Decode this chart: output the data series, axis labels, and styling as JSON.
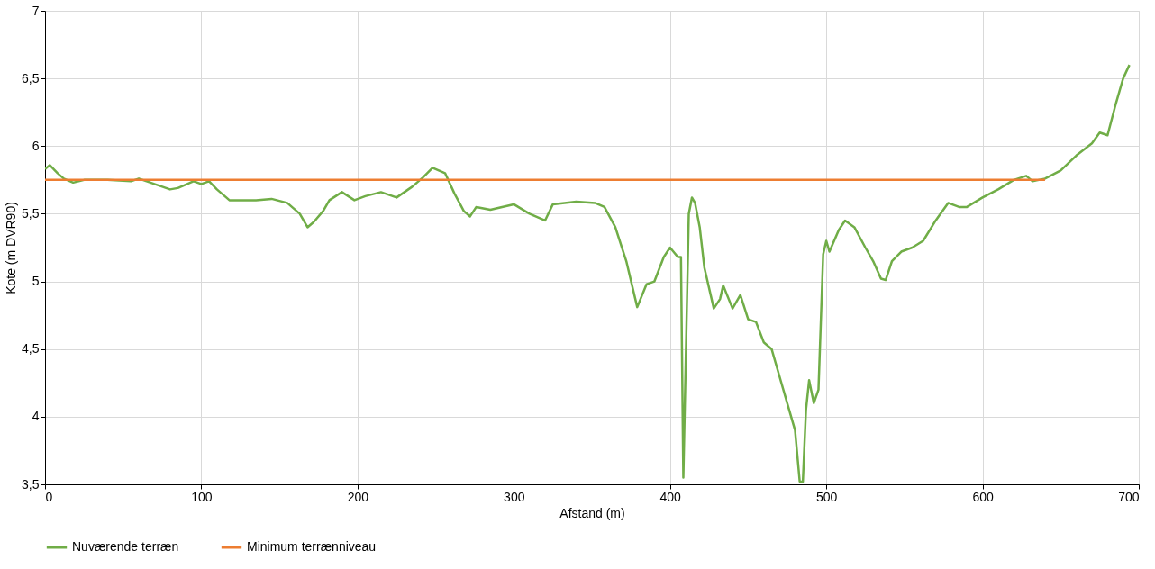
{
  "chart_data": {
    "type": "line",
    "xlabel": "Afstand (m)",
    "ylabel": "Kote (m DVR90)",
    "xlim": [
      0,
      700
    ],
    "xticks": [
      0,
      100,
      200,
      300,
      400,
      500,
      600,
      700
    ],
    "ylim": [
      3.5,
      7
    ],
    "yticks": [
      {
        "value": 3.5,
        "label": "3,5"
      },
      4,
      {
        "value": 4.5,
        "label": "4,5"
      },
      5,
      {
        "value": 5.5,
        "label": "5,5"
      },
      6,
      {
        "value": 6.5,
        "label": "6,5"
      },
      7
    ],
    "grid": true,
    "legend": "bottom",
    "line_style": "solid",
    "marker": "none",
    "series": [
      {
        "name": "Nuværende terræn",
        "color": "#70ad47",
        "x": [
          0,
          3,
          8,
          12,
          18,
          25,
          40,
          55,
          60,
          70,
          80,
          85,
          95,
          100,
          105,
          110,
          118,
          125,
          135,
          145,
          155,
          163,
          168,
          172,
          178,
          182,
          190,
          198,
          205,
          215,
          225,
          235,
          242,
          248,
          252,
          256,
          262,
          268,
          272,
          276,
          285,
          300,
          310,
          320,
          325,
          340,
          352,
          358,
          365,
          372,
          379,
          385,
          390,
          396,
          400,
          405,
          407,
          408.5,
          412,
          414,
          416,
          419,
          422,
          428,
          432,
          434,
          440,
          445,
          450,
          455,
          460,
          465,
          470,
          475,
          480,
          483,
          485,
          487,
          489,
          492,
          495,
          498,
          500,
          502,
          508,
          512,
          518,
          525,
          530,
          535,
          538,
          542,
          548,
          555,
          562,
          570,
          578,
          585,
          590,
          600,
          610,
          620,
          628,
          632,
          640,
          650,
          660,
          670,
          675,
          680,
          685,
          690,
          694
        ],
        "values": [
          5.83,
          5.86,
          5.8,
          5.76,
          5.73,
          5.75,
          5.75,
          5.74,
          5.76,
          5.72,
          5.68,
          5.69,
          5.74,
          5.72,
          5.74,
          5.68,
          5.6,
          5.6,
          5.6,
          5.61,
          5.58,
          5.5,
          5.4,
          5.44,
          5.52,
          5.6,
          5.66,
          5.6,
          5.63,
          5.66,
          5.62,
          5.7,
          5.77,
          5.84,
          5.82,
          5.8,
          5.65,
          5.52,
          5.48,
          5.55,
          5.53,
          5.57,
          5.5,
          5.45,
          5.57,
          5.59,
          5.58,
          5.55,
          5.4,
          5.15,
          4.81,
          4.98,
          5.0,
          5.18,
          5.25,
          5.18,
          5.18,
          3.55,
          5.5,
          5.62,
          5.58,
          5.4,
          5.1,
          4.8,
          4.87,
          4.97,
          4.8,
          4.9,
          4.72,
          4.7,
          4.55,
          4.5,
          4.3,
          4.1,
          3.9,
          3.52,
          3.52,
          4.05,
          4.27,
          4.1,
          4.2,
          5.2,
          5.3,
          5.22,
          5.38,
          5.45,
          5.4,
          5.25,
          5.15,
          5.02,
          5.01,
          5.15,
          5.22,
          5.25,
          5.3,
          5.45,
          5.58,
          5.55,
          5.55,
          5.62,
          5.68,
          5.75,
          5.78,
          5.74,
          5.76,
          5.82,
          5.93,
          6.02,
          6.1,
          6.08,
          6.3,
          6.5,
          6.6
        ]
      },
      {
        "name": "Minimum terrænniveau",
        "color": "#ed7d31",
        "x": [
          0,
          640
        ],
        "values": [
          5.75,
          5.75
        ]
      }
    ]
  }
}
